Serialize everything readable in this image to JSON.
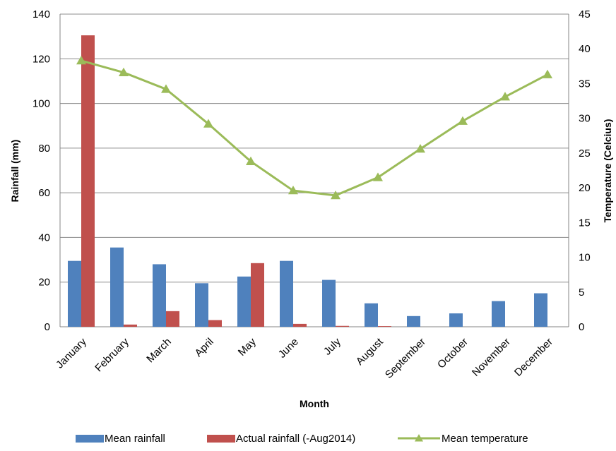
{
  "chart_data": {
    "type": "bar",
    "title": "",
    "xlabel": "Month",
    "ylabel": "Rainfall (mm)",
    "y2label": "Temperature (Celcius)",
    "categories": [
      "January",
      "February",
      "March",
      "April",
      "May",
      "June",
      "July",
      "August",
      "September",
      "October",
      "November",
      "December"
    ],
    "ylim": [
      0,
      140
    ],
    "yticks": [
      0,
      20,
      40,
      60,
      80,
      100,
      120,
      140
    ],
    "y2lim": [
      0,
      45
    ],
    "y2ticks": [
      0,
      5,
      10,
      15,
      20,
      25,
      30,
      35,
      40,
      45
    ],
    "grid": true,
    "legend_position": "bottom",
    "series": [
      {
        "name": "Mean rainfall",
        "kind": "bar",
        "axis": "left",
        "color": "#4f81bd",
        "values": [
          29.5,
          35.5,
          28,
          19.5,
          22.5,
          29.5,
          21,
          10.5,
          4.8,
          6,
          11.5,
          15
        ]
      },
      {
        "name": "Actual rainfall (-Aug2014)",
        "kind": "bar",
        "axis": "left",
        "color": "#c0504d",
        "values": [
          130.5,
          1,
          7,
          3,
          28.5,
          1.3,
          0.4,
          0.3,
          null,
          null,
          null,
          null
        ]
      },
      {
        "name": "Mean temperature",
        "kind": "line",
        "axis": "right",
        "color": "#9bbb59",
        "marker": "triangle",
        "values": [
          38.3,
          36.6,
          34.2,
          29.2,
          23.8,
          19.6,
          18.9,
          21.5,
          25.6,
          29.6,
          33.1,
          36.3
        ]
      }
    ]
  }
}
